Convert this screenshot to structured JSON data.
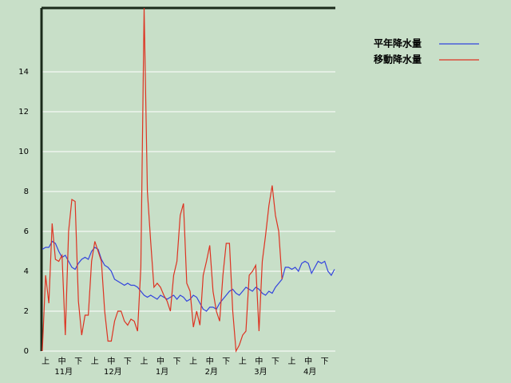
{
  "chart_data": {
    "type": "line",
    "categories": [
      null,
      "上",
      null,
      null,
      null,
      null,
      "中",
      null,
      null,
      null,
      null,
      "下",
      null,
      null,
      null,
      null,
      "上",
      null,
      null,
      null,
      null,
      "中",
      null,
      null,
      null,
      null,
      "下",
      null,
      null,
      null,
      null,
      "上",
      null,
      null,
      null,
      null,
      "中",
      null,
      null,
      null,
      null,
      "下",
      null,
      null,
      null,
      null,
      "上",
      null,
      null,
      null,
      null,
      "中",
      null,
      null,
      null,
      null,
      "下",
      null,
      null,
      null,
      null,
      "上",
      null,
      null,
      null,
      null,
      "中",
      null,
      null,
      null,
      null,
      "下",
      null,
      null,
      null,
      null,
      "上",
      null,
      null,
      null,
      null,
      "中",
      null,
      null,
      null,
      null,
      "下",
      null,
      null,
      null
    ],
    "month_labels": [
      "11月",
      "12月",
      "1月",
      "2月",
      "3月",
      "4月"
    ],
    "series": [
      {
        "name": "平年降水量",
        "color": "#3344dd",
        "values": [
          5.1,
          5.2,
          5.2,
          5.5,
          5.4,
          5.0,
          4.7,
          4.8,
          4.5,
          4.2,
          4.1,
          4.4,
          4.6,
          4.7,
          4.6,
          5.0,
          5.2,
          5.1,
          4.6,
          4.3,
          4.2,
          4.0,
          3.6,
          3.5,
          3.4,
          3.3,
          3.4,
          3.3,
          3.3,
          3.2,
          3.0,
          2.8,
          2.7,
          2.8,
          2.7,
          2.6,
          2.8,
          2.7,
          2.6,
          2.7,
          2.8,
          2.6,
          2.8,
          2.7,
          2.5,
          2.6,
          2.8,
          2.7,
          2.4,
          2.1,
          2.0,
          2.2,
          2.2,
          2.1,
          2.4,
          2.6,
          2.8,
          3.0,
          3.1,
          2.9,
          2.8,
          3.0,
          3.2,
          3.1,
          3.0,
          3.2,
          3.1,
          2.9,
          2.8,
          3.0,
          2.9,
          3.2,
          3.4,
          3.6,
          4.2,
          4.2,
          4.1,
          4.2,
          4.0,
          4.4,
          4.5,
          4.4,
          3.9,
          4.2,
          4.5,
          4.4,
          4.5,
          4.0,
          3.8,
          4.1
        ]
      },
      {
        "name": "移動降水量",
        "color": "#dd3322",
        "values": [
          0,
          3.8,
          2.4,
          6.4,
          4.6,
          4.5,
          4.8,
          0.8,
          6.0,
          7.6,
          7.5,
          2.5,
          0.8,
          1.8,
          1.8,
          4.5,
          5.5,
          5.0,
          4.5,
          2.0,
          0.5,
          0.5,
          1.5,
          2.0,
          2.0,
          1.5,
          1.3,
          1.6,
          1.5,
          1.0,
          4.2,
          17.2,
          8.0,
          5.5,
          3.2,
          3.4,
          3.2,
          2.8,
          2.5,
          2.0,
          3.8,
          4.5,
          6.8,
          7.4,
          3.4,
          3.0,
          1.2,
          2.0,
          1.3,
          3.8,
          4.5,
          5.3,
          3.0,
          2.0,
          1.5,
          3.8,
          5.4,
          5.4,
          2.0,
          0,
          0.3,
          0.8,
          1.0,
          3.8,
          4.0,
          4.3,
          1.0,
          4.5,
          5.8,
          7.3,
          8.3,
          6.8,
          6.0,
          3.6,
          null,
          null,
          null,
          null,
          null,
          null,
          null,
          null,
          null,
          null,
          null,
          null,
          null,
          null,
          null,
          null
        ]
      }
    ],
    "ylim": [
      0,
      17.2
    ],
    "yticks": [
      0,
      2,
      4,
      6,
      8,
      10,
      12,
      14
    ],
    "grid": true
  }
}
